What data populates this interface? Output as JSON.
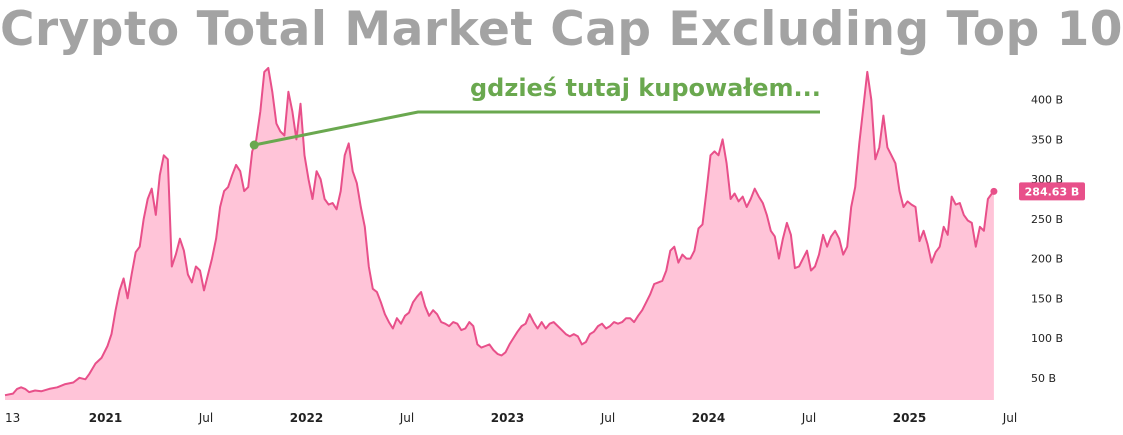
{
  "chart_data": {
    "type": "area",
    "title": "Crypto Total Market Cap Excluding Top 10",
    "annotation": "gdzieś tutaj kupowałem...",
    "last_value_label": "284.63 B",
    "y_unit": "B",
    "ylim": [
      22,
      450
    ],
    "y_ticks": [
      {
        "value": 50,
        "label": "50 B"
      },
      {
        "value": 100,
        "label": "100 B"
      },
      {
        "value": 150,
        "label": "150 B"
      },
      {
        "value": 200,
        "label": "200 B"
      },
      {
        "value": 250,
        "label": "250 B"
      },
      {
        "value": 300,
        "label": "300 B"
      },
      {
        "value": 350,
        "label": "350 B"
      },
      {
        "value": 400,
        "label": "400 B"
      }
    ],
    "x_ticks": [
      {
        "t": 0.0,
        "label": "13",
        "bold": false
      },
      {
        "t": 0.5,
        "label": "2021",
        "bold": true
      },
      {
        "t": 1.0,
        "label": "Jul",
        "bold": false
      },
      {
        "t": 1.5,
        "label": "2022",
        "bold": true
      },
      {
        "t": 2.0,
        "label": "Jul",
        "bold": false
      },
      {
        "t": 2.5,
        "label": "2023",
        "bold": true
      },
      {
        "t": 3.0,
        "label": "Jul",
        "bold": false
      },
      {
        "t": 3.5,
        "label": "2024",
        "bold": true
      },
      {
        "t": 4.0,
        "label": "Jul",
        "bold": false
      },
      {
        "t": 4.5,
        "label": "2025",
        "bold": true
      },
      {
        "t": 5.0,
        "label": "Jul",
        "bold": false
      }
    ],
    "annotation_point": {
      "t": 1.24,
      "value": 343
    },
    "series": [
      {
        "points": [
          [
            0.0,
            28
          ],
          [
            0.04,
            30
          ],
          [
            0.06,
            36
          ],
          [
            0.08,
            38
          ],
          [
            0.1,
            36
          ],
          [
            0.12,
            32
          ],
          [
            0.15,
            34
          ],
          [
            0.18,
            33
          ],
          [
            0.22,
            36
          ],
          [
            0.26,
            38
          ],
          [
            0.3,
            42
          ],
          [
            0.34,
            44
          ],
          [
            0.37,
            50
          ],
          [
            0.4,
            48
          ],
          [
            0.42,
            55
          ],
          [
            0.45,
            68
          ],
          [
            0.48,
            75
          ],
          [
            0.51,
            90
          ],
          [
            0.53,
            105
          ],
          [
            0.55,
            135
          ],
          [
            0.57,
            160
          ],
          [
            0.59,
            175
          ],
          [
            0.61,
            150
          ],
          [
            0.63,
            180
          ],
          [
            0.65,
            208
          ],
          [
            0.67,
            215
          ],
          [
            0.69,
            250
          ],
          [
            0.71,
            275
          ],
          [
            0.73,
            288
          ],
          [
            0.75,
            255
          ],
          [
            0.77,
            305
          ],
          [
            0.79,
            330
          ],
          [
            0.81,
            325
          ],
          [
            0.83,
            190
          ],
          [
            0.85,
            205
          ],
          [
            0.87,
            225
          ],
          [
            0.89,
            210
          ],
          [
            0.91,
            180
          ],
          [
            0.93,
            170
          ],
          [
            0.95,
            190
          ],
          [
            0.97,
            185
          ],
          [
            0.99,
            160
          ],
          [
            1.01,
            180
          ],
          [
            1.03,
            200
          ],
          [
            1.05,
            225
          ],
          [
            1.07,
            265
          ],
          [
            1.09,
            285
          ],
          [
            1.11,
            290
          ],
          [
            1.13,
            305
          ],
          [
            1.15,
            318
          ],
          [
            1.17,
            310
          ],
          [
            1.19,
            285
          ],
          [
            1.21,
            290
          ],
          [
            1.23,
            335
          ],
          [
            1.25,
            350
          ],
          [
            1.27,
            385
          ],
          [
            1.29,
            435
          ],
          [
            1.31,
            440
          ],
          [
            1.33,
            410
          ],
          [
            1.35,
            370
          ],
          [
            1.37,
            360
          ],
          [
            1.39,
            355
          ],
          [
            1.41,
            410
          ],
          [
            1.43,
            385
          ],
          [
            1.45,
            350
          ],
          [
            1.47,
            395
          ],
          [
            1.49,
            330
          ],
          [
            1.51,
            300
          ],
          [
            1.53,
            275
          ],
          [
            1.55,
            310
          ],
          [
            1.57,
            300
          ],
          [
            1.59,
            275
          ],
          [
            1.61,
            268
          ],
          [
            1.63,
            270
          ],
          [
            1.65,
            262
          ],
          [
            1.67,
            285
          ],
          [
            1.69,
            330
          ],
          [
            1.71,
            345
          ],
          [
            1.73,
            310
          ],
          [
            1.75,
            295
          ],
          [
            1.77,
            265
          ],
          [
            1.79,
            240
          ],
          [
            1.81,
            190
          ],
          [
            1.83,
            162
          ],
          [
            1.85,
            158
          ],
          [
            1.87,
            145
          ],
          [
            1.89,
            130
          ],
          [
            1.91,
            120
          ],
          [
            1.93,
            112
          ],
          [
            1.95,
            125
          ],
          [
            1.97,
            118
          ],
          [
            1.99,
            128
          ],
          [
            2.01,
            132
          ],
          [
            2.03,
            145
          ],
          [
            2.05,
            152
          ],
          [
            2.07,
            158
          ],
          [
            2.09,
            140
          ],
          [
            2.11,
            128
          ],
          [
            2.13,
            135
          ],
          [
            2.15,
            130
          ],
          [
            2.17,
            120
          ],
          [
            2.19,
            118
          ],
          [
            2.21,
            115
          ],
          [
            2.23,
            120
          ],
          [
            2.25,
            118
          ],
          [
            2.27,
            110
          ],
          [
            2.29,
            112
          ],
          [
            2.31,
            120
          ],
          [
            2.33,
            115
          ],
          [
            2.35,
            92
          ],
          [
            2.37,
            88
          ],
          [
            2.39,
            90
          ],
          [
            2.41,
            92
          ],
          [
            2.43,
            85
          ],
          [
            2.45,
            80
          ],
          [
            2.47,
            78
          ],
          [
            2.49,
            82
          ],
          [
            2.51,
            92
          ],
          [
            2.53,
            100
          ],
          [
            2.55,
            108
          ],
          [
            2.57,
            115
          ],
          [
            2.59,
            118
          ],
          [
            2.61,
            130
          ],
          [
            2.63,
            120
          ],
          [
            2.65,
            112
          ],
          [
            2.67,
            120
          ],
          [
            2.69,
            112
          ],
          [
            2.71,
            118
          ],
          [
            2.73,
            120
          ],
          [
            2.75,
            115
          ],
          [
            2.77,
            110
          ],
          [
            2.79,
            105
          ],
          [
            2.81,
            102
          ],
          [
            2.83,
            105
          ],
          [
            2.85,
            102
          ],
          [
            2.87,
            92
          ],
          [
            2.89,
            95
          ],
          [
            2.91,
            105
          ],
          [
            2.93,
            108
          ],
          [
            2.95,
            115
          ],
          [
            2.97,
            118
          ],
          [
            2.99,
            112
          ],
          [
            3.01,
            115
          ],
          [
            3.03,
            120
          ],
          [
            3.05,
            118
          ],
          [
            3.07,
            120
          ],
          [
            3.09,
            125
          ],
          [
            3.11,
            125
          ],
          [
            3.13,
            120
          ],
          [
            3.15,
            128
          ],
          [
            3.17,
            135
          ],
          [
            3.19,
            145
          ],
          [
            3.21,
            155
          ],
          [
            3.23,
            168
          ],
          [
            3.25,
            170
          ],
          [
            3.27,
            172
          ],
          [
            3.29,
            185
          ],
          [
            3.31,
            210
          ],
          [
            3.33,
            215
          ],
          [
            3.35,
            195
          ],
          [
            3.37,
            205
          ],
          [
            3.39,
            200
          ],
          [
            3.41,
            200
          ],
          [
            3.43,
            210
          ],
          [
            3.45,
            238
          ],
          [
            3.47,
            243
          ],
          [
            3.49,
            285
          ],
          [
            3.51,
            330
          ],
          [
            3.53,
            335
          ],
          [
            3.55,
            330
          ],
          [
            3.57,
            350
          ],
          [
            3.59,
            320
          ],
          [
            3.61,
            275
          ],
          [
            3.63,
            282
          ],
          [
            3.65,
            272
          ],
          [
            3.67,
            278
          ],
          [
            3.69,
            265
          ],
          [
            3.71,
            275
          ],
          [
            3.73,
            288
          ],
          [
            3.75,
            278
          ],
          [
            3.77,
            270
          ],
          [
            3.79,
            255
          ],
          [
            3.81,
            235
          ],
          [
            3.83,
            228
          ],
          [
            3.85,
            200
          ],
          [
            3.87,
            225
          ],
          [
            3.89,
            245
          ],
          [
            3.91,
            230
          ],
          [
            3.93,
            188
          ],
          [
            3.95,
            190
          ],
          [
            3.97,
            200
          ],
          [
            3.99,
            210
          ],
          [
            4.01,
            185
          ],
          [
            4.03,
            190
          ],
          [
            4.05,
            205
          ],
          [
            4.07,
            230
          ],
          [
            4.09,
            215
          ],
          [
            4.11,
            228
          ],
          [
            4.13,
            235
          ],
          [
            4.15,
            225
          ],
          [
            4.17,
            205
          ],
          [
            4.19,
            215
          ],
          [
            4.21,
            265
          ],
          [
            4.23,
            290
          ],
          [
            4.25,
            345
          ],
          [
            4.27,
            390
          ],
          [
            4.29,
            435
          ],
          [
            4.31,
            400
          ],
          [
            4.33,
            325
          ],
          [
            4.35,
            340
          ],
          [
            4.37,
            380
          ],
          [
            4.39,
            340
          ],
          [
            4.41,
            330
          ],
          [
            4.43,
            320
          ],
          [
            4.45,
            285
          ],
          [
            4.47,
            265
          ],
          [
            4.49,
            272
          ],
          [
            4.51,
            268
          ],
          [
            4.53,
            265
          ],
          [
            4.55,
            222
          ],
          [
            4.57,
            235
          ],
          [
            4.59,
            218
          ],
          [
            4.61,
            195
          ],
          [
            4.63,
            208
          ],
          [
            4.65,
            215
          ],
          [
            4.67,
            240
          ],
          [
            4.69,
            230
          ],
          [
            4.71,
            278
          ],
          [
            4.73,
            268
          ],
          [
            4.75,
            270
          ],
          [
            4.77,
            255
          ],
          [
            4.79,
            248
          ],
          [
            4.81,
            245
          ],
          [
            4.83,
            215
          ],
          [
            4.85,
            240
          ],
          [
            4.87,
            235
          ],
          [
            4.89,
            275
          ],
          [
            4.91,
            282
          ],
          [
            4.92,
            284.63
          ]
        ]
      }
    ],
    "colors": {
      "title": "#a3a3a3",
      "line": "#e8508a",
      "fill": "#ffc4d8",
      "annotation": "#6aa84f",
      "last_label_bg": "#e8508a"
    }
  }
}
